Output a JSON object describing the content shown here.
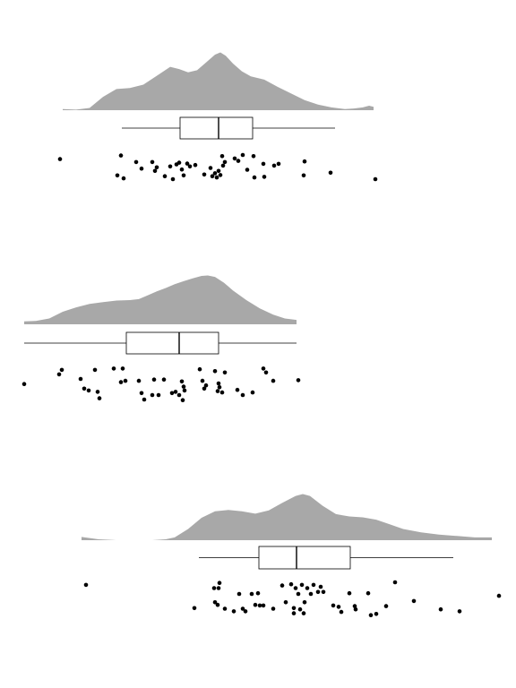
{
  "chart_data": [
    {
      "type": "raincloud",
      "title": "",
      "xlabel": "",
      "ylabel": "",
      "xlim": [
        0,
        576
      ],
      "density_curve": {
        "color": "#a8a8a8",
        "x": [
          70,
          85,
          100,
          115,
          130,
          145,
          160,
          175,
          190,
          200,
          210,
          220,
          230,
          240,
          246,
          252,
          260,
          270,
          280,
          295,
          310,
          325,
          340,
          355,
          370,
          385,
          395,
          405,
          412,
          417
        ],
        "density": [
          0.02,
          0.01,
          0.04,
          0.24,
          0.38,
          0.4,
          0.46,
          0.62,
          0.78,
          0.74,
          0.68,
          0.72,
          0.86,
          1.0,
          1.04,
          0.98,
          0.84,
          0.7,
          0.61,
          0.55,
          0.42,
          0.3,
          0.18,
          0.1,
          0.05,
          0.02,
          0.03,
          0.05,
          0.08,
          0.06
        ]
      },
      "box": {
        "whisker_low": 136,
        "q1": 201,
        "median": 244,
        "q3": 282,
        "whisker_high": 374
      },
      "points": [
        {
          "x": 67,
          "j": 0.2
        },
        {
          "x": 131,
          "j": 0.75
        },
        {
          "x": 138,
          "j": 0.85
        },
        {
          "x": 135,
          "j": 0.08
        },
        {
          "x": 152,
          "j": 0.3
        },
        {
          "x": 158,
          "j": 0.52
        },
        {
          "x": 170,
          "j": 0.3
        },
        {
          "x": 175,
          "j": 0.48
        },
        {
          "x": 173,
          "j": 0.6
        },
        {
          "x": 184,
          "j": 0.78
        },
        {
          "x": 190,
          "j": 0.45
        },
        {
          "x": 193,
          "j": 0.88
        },
        {
          "x": 197,
          "j": 0.38
        },
        {
          "x": 200,
          "j": 0.32
        },
        {
          "x": 203,
          "j": 0.55
        },
        {
          "x": 205,
          "j": 0.75
        },
        {
          "x": 209,
          "j": 0.35
        },
        {
          "x": 212,
          "j": 0.45
        },
        {
          "x": 218,
          "j": 0.4
        },
        {
          "x": 228,
          "j": 0.72
        },
        {
          "x": 235,
          "j": 0.5
        },
        {
          "x": 237,
          "j": 0.78
        },
        {
          "x": 240,
          "j": 0.68
        },
        {
          "x": 242,
          "j": 0.82
        },
        {
          "x": 244,
          "j": 0.6
        },
        {
          "x": 246,
          "j": 0.74
        },
        {
          "x": 248,
          "j": 0.1
        },
        {
          "x": 249,
          "j": 0.42
        },
        {
          "x": 251,
          "j": 0.3
        },
        {
          "x": 262,
          "j": 0.18
        },
        {
          "x": 266,
          "j": 0.26
        },
        {
          "x": 271,
          "j": 0.06
        },
        {
          "x": 276,
          "j": 0.56
        },
        {
          "x": 283,
          "j": 0.1
        },
        {
          "x": 284,
          "j": 0.82
        },
        {
          "x": 294,
          "j": 0.36
        },
        {
          "x": 295,
          "j": 0.8
        },
        {
          "x": 306,
          "j": 0.42
        },
        {
          "x": 311,
          "j": 0.36
        },
        {
          "x": 340,
          "j": 0.28
        },
        {
          "x": 339,
          "j": 0.75
        },
        {
          "x": 369,
          "j": 0.66
        },
        {
          "x": 419,
          "j": 0.88
        }
      ]
    },
    {
      "type": "raincloud",
      "title": "",
      "xlabel": "",
      "ylabel": "",
      "xlim": [
        0,
        576
      ],
      "density_curve": {
        "color": "#a8a8a8",
        "x": [
          27,
          40,
          55,
          70,
          85,
          100,
          115,
          130,
          145,
          155,
          165,
          175,
          185,
          195,
          205,
          215,
          225,
          232,
          240,
          250,
          260,
          275,
          290,
          305,
          318,
          331
        ],
        "density": [
          0.06,
          0.07,
          0.12,
          0.26,
          0.35,
          0.42,
          0.46,
          0.49,
          0.5,
          0.52,
          0.6,
          0.68,
          0.75,
          0.83,
          0.89,
          0.95,
          1.0,
          1.01,
          0.98,
          0.86,
          0.7,
          0.5,
          0.33,
          0.2,
          0.12,
          0.09
        ]
      },
      "box": {
        "whisker_low": 27,
        "q1": 141,
        "median": 200,
        "q3": 244,
        "whisker_high": 331
      },
      "points": [
        {
          "x": 27,
          "j": 0.52
        },
        {
          "x": 66,
          "j": 0.22
        },
        {
          "x": 69,
          "j": 0.08
        },
        {
          "x": 90,
          "j": 0.36
        },
        {
          "x": 94,
          "j": 0.66
        },
        {
          "x": 99,
          "j": 0.72
        },
        {
          "x": 106,
          "j": 0.08
        },
        {
          "x": 109,
          "j": 0.76
        },
        {
          "x": 111,
          "j": 0.96
        },
        {
          "x": 127,
          "j": 0.04
        },
        {
          "x": 135,
          "j": 0.46
        },
        {
          "x": 137,
          "j": 0.04
        },
        {
          "x": 140,
          "j": 0.42
        },
        {
          "x": 155,
          "j": 0.42
        },
        {
          "x": 158,
          "j": 0.8
        },
        {
          "x": 161,
          "j": 1.0
        },
        {
          "x": 170,
          "j": 0.86
        },
        {
          "x": 172,
          "j": 0.38
        },
        {
          "x": 177,
          "j": 0.86
        },
        {
          "x": 183,
          "j": 0.38
        },
        {
          "x": 192,
          "j": 0.8
        },
        {
          "x": 196,
          "j": 0.76
        },
        {
          "x": 200,
          "j": 0.86
        },
        {
          "x": 203,
          "j": 0.44
        },
        {
          "x": 205,
          "j": 0.6
        },
        {
          "x": 204,
          "j": 1.02
        },
        {
          "x": 206,
          "j": 0.72
        },
        {
          "x": 223,
          "j": 0.06
        },
        {
          "x": 226,
          "j": 0.42
        },
        {
          "x": 228,
          "j": 0.66
        },
        {
          "x": 230,
          "j": 0.56
        },
        {
          "x": 240,
          "j": 0.12
        },
        {
          "x": 243,
          "j": 0.74
        },
        {
          "x": 244,
          "j": 0.5
        },
        {
          "x": 245,
          "j": 0.62
        },
        {
          "x": 248,
          "j": 0.78
        },
        {
          "x": 251,
          "j": 0.16
        },
        {
          "x": 265,
          "j": 0.7
        },
        {
          "x": 271,
          "j": 0.86
        },
        {
          "x": 282,
          "j": 0.78
        },
        {
          "x": 294,
          "j": 0.04
        },
        {
          "x": 297,
          "j": 0.16
        },
        {
          "x": 305,
          "j": 0.42
        },
        {
          "x": 333,
          "j": 0.4
        }
      ]
    },
    {
      "type": "raincloud",
      "title": "",
      "xlabel": "",
      "ylabel": "",
      "xlim": [
        0,
        576
      ],
      "density_curve": {
        "color": "#a8a8a8",
        "x": [
          91,
          110,
          130,
          150,
          170,
          185,
          195,
          210,
          225,
          240,
          255,
          270,
          285,
          300,
          315,
          330,
          338,
          346,
          360,
          375,
          390,
          405,
          420,
          435,
          450,
          470,
          490,
          510,
          530,
          549
        ],
        "density": [
          0.07,
          0.02,
          0.0,
          0.0,
          0.0,
          0.02,
          0.06,
          0.24,
          0.48,
          0.62,
          0.65,
          0.62,
          0.57,
          0.64,
          0.8,
          0.95,
          0.99,
          0.95,
          0.74,
          0.56,
          0.51,
          0.49,
          0.44,
          0.34,
          0.24,
          0.17,
          0.12,
          0.09,
          0.06,
          0.06
        ]
      },
      "box": {
        "whisker_low": 222,
        "q1": 289,
        "median": 331,
        "q3": 391,
        "whisker_high": 506
      },
      "points": [
        {
          "x": 96,
          "j": 0.08
        },
        {
          "x": 217,
          "j": 0.8
        },
        {
          "x": 239,
          "j": 0.18
        },
        {
          "x": 240,
          "j": 0.62
        },
        {
          "x": 243,
          "j": 0.7
        },
        {
          "x": 244,
          "j": 0.18
        },
        {
          "x": 245,
          "j": 0.02
        },
        {
          "x": 251,
          "j": 0.82
        },
        {
          "x": 261,
          "j": 0.9
        },
        {
          "x": 267,
          "j": 0.36
        },
        {
          "x": 271,
          "j": 0.82
        },
        {
          "x": 274,
          "j": 0.9
        },
        {
          "x": 281,
          "j": 0.36
        },
        {
          "x": 285,
          "j": 0.7
        },
        {
          "x": 288,
          "j": 0.34
        },
        {
          "x": 290,
          "j": 0.72
        },
        {
          "x": 294,
          "j": 0.72
        },
        {
          "x": 305,
          "j": 0.82
        },
        {
          "x": 315,
          "j": 0.1
        },
        {
          "x": 319,
          "j": 0.62
        },
        {
          "x": 325,
          "j": 0.06
        },
        {
          "x": 328,
          "j": 0.8
        },
        {
          "x": 330,
          "j": 0.18
        },
        {
          "x": 328,
          "j": 0.96
        },
        {
          "x": 333,
          "j": 0.36
        },
        {
          "x": 335,
          "j": 0.84
        },
        {
          "x": 337,
          "j": 0.08
        },
        {
          "x": 339,
          "j": 0.96
        },
        {
          "x": 340,
          "j": 0.62
        },
        {
          "x": 343,
          "j": 0.18
        },
        {
          "x": 347,
          "j": 0.36
        },
        {
          "x": 350,
          "j": 0.08
        },
        {
          "x": 355,
          "j": 0.3
        },
        {
          "x": 358,
          "j": 0.14
        },
        {
          "x": 361,
          "j": 0.3
        },
        {
          "x": 372,
          "j": 0.72
        },
        {
          "x": 378,
          "j": 0.76
        },
        {
          "x": 381,
          "j": 0.92
        },
        {
          "x": 390,
          "j": 0.34
        },
        {
          "x": 396,
          "j": 0.74
        },
        {
          "x": 397,
          "j": 0.84
        },
        {
          "x": 411,
          "j": 0.34
        },
        {
          "x": 414,
          "j": 1.02
        },
        {
          "x": 420,
          "j": 0.98
        },
        {
          "x": 431,
          "j": 0.74
        },
        {
          "x": 441,
          "j": 0.0
        },
        {
          "x": 462,
          "j": 0.58
        },
        {
          "x": 492,
          "j": 0.84
        },
        {
          "x": 513,
          "j": 0.9
        },
        {
          "x": 557,
          "j": 0.42
        }
      ]
    }
  ]
}
